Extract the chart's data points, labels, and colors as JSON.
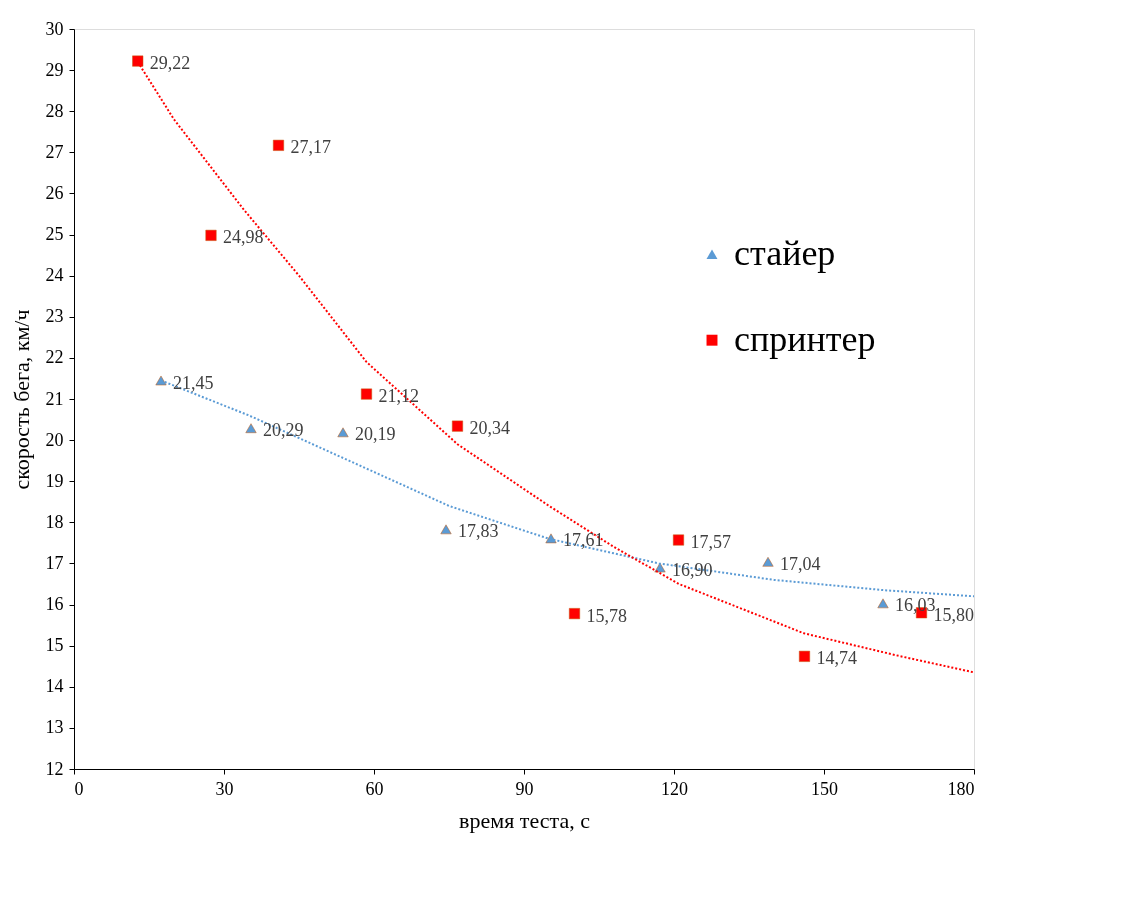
{
  "chart_data": {
    "type": "scatter",
    "xlabel": "время теста, с",
    "ylabel": "скорость бега, км/ч",
    "xlim": [
      0,
      180
    ],
    "xticks": [
      0,
      30,
      60,
      90,
      120,
      150,
      180
    ],
    "ylim": [
      12,
      30
    ],
    "yticks": [
      12,
      13,
      14,
      15,
      16,
      17,
      18,
      19,
      20,
      21,
      22,
      23,
      24,
      25,
      26,
      27,
      28,
      29,
      30
    ],
    "grid": false,
    "legend": "right",
    "series": [
      {
        "name": "стайер",
        "marker": "triangle",
        "color": "#5b9bd5",
        "x": [
          17.4,
          35.4,
          53.8,
          74.4,
          95.4,
          117.2,
          138.8,
          161.8
        ],
        "values": [
          21.45,
          20.29,
          20.19,
          17.83,
          17.61,
          16.9,
          17.04,
          16.03
        ],
        "value_labels": [
          "21,45",
          "20,29",
          "20,19",
          "17,83",
          "17,61",
          "16,90",
          "17,04",
          "16,03"
        ]
      },
      {
        "name": "спринтер",
        "marker": "square",
        "color": "#ff0000",
        "x": [
          12.75,
          27.4,
          40.9,
          58.5,
          76.7,
          100.1,
          120.9,
          146.1,
          169.5
        ],
        "values": [
          29.22,
          24.98,
          27.17,
          21.12,
          20.34,
          15.78,
          17.57,
          14.74,
          15.8
        ],
        "value_labels": [
          "29,22",
          "24,98",
          "27,17",
          "21,12",
          "20,34",
          "15,78",
          "17,57",
          "14,74",
          "15,80"
        ]
      },
      {
        "type": "line",
        "line_style": "dotted",
        "color": "#5b9bd5",
        "x": [
          17.4,
          35,
          55,
          75,
          95,
          117,
          140,
          162,
          180
        ],
        "values": [
          21.45,
          20.6,
          19.5,
          18.4,
          17.6,
          17.0,
          16.6,
          16.35,
          16.2
        ]
      },
      {
        "type": "line",
        "line_style": "dotted",
        "color": "#ff0000",
        "x": [
          12.75,
          20,
          34,
          45,
          58.5,
          76.7,
          95,
          108,
          121,
          146,
          165,
          180
        ],
        "values": [
          29.2,
          27.8,
          25.6,
          24.0,
          21.9,
          19.9,
          18.4,
          17.4,
          16.5,
          15.3,
          14.75,
          14.35
        ]
      }
    ]
  }
}
